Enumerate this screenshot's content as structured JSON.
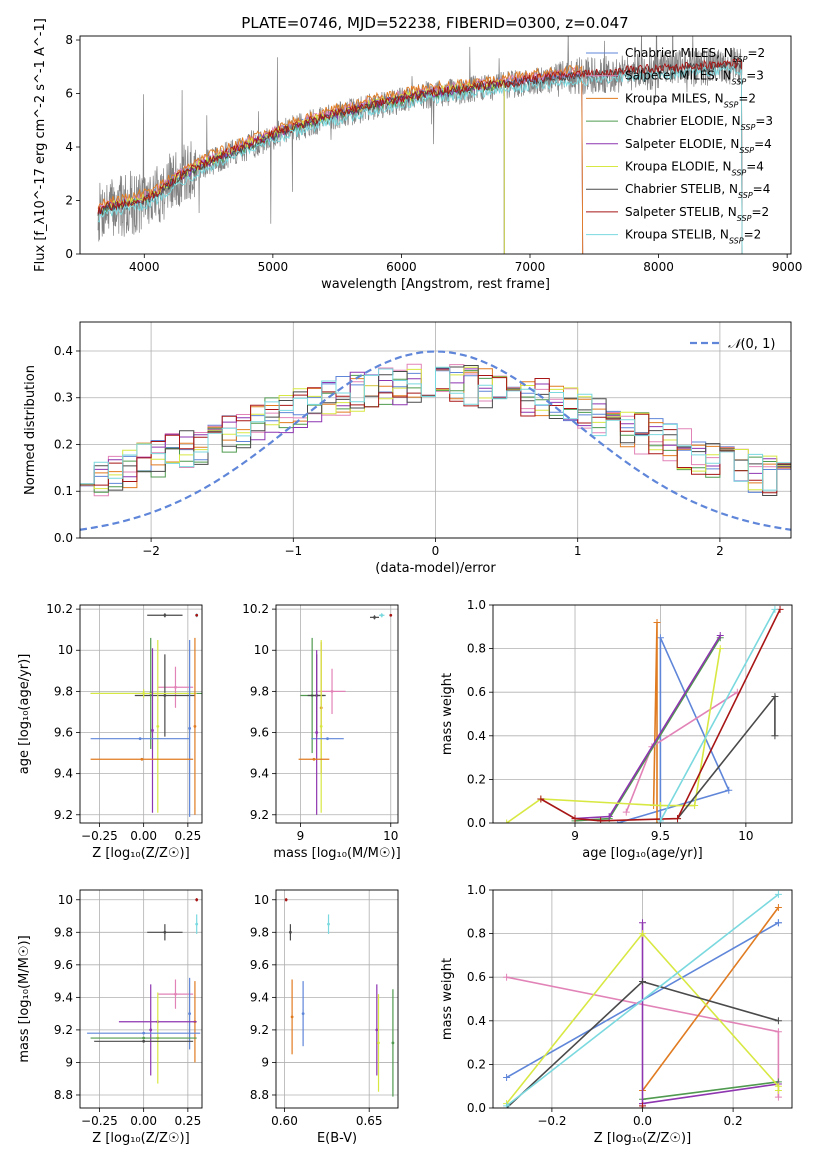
{
  "colors": {
    "cm": "#5f86d9",
    "sm": "#e283b7",
    "km": "#e07b21",
    "ce": "#4f9a4f",
    "se": "#8e35b0",
    "ke": "#d8e843",
    "cs": "#4a4a4a",
    "ss": "#a81616",
    "ks": "#7ad9df",
    "data": "#808080",
    "normal": "#5f86d9"
  },
  "chart_data": [
    {
      "id": "spectrum",
      "type": "line",
      "title": "PLATE=0746, MJD=52238, FIBERID=0300, z=0.047",
      "xlabel": "wavelength [Angstrom, rest frame]",
      "ylabel": "Flux [f_λ10^-17 erg cm^-2 s^-1 A^-1]",
      "xlim": [
        3500,
        9030
      ],
      "ylim": [
        0,
        8.15
      ],
      "xticks": [
        4000,
        5000,
        6000,
        7000,
        8000,
        9000
      ],
      "yticks": [
        0,
        2,
        4,
        6,
        8
      ],
      "data_range": [
        3640,
        8650
      ],
      "grid": false,
      "legend_position": "top-right",
      "continuum": {
        "x": [
          3640,
          3700,
          3800,
          3900,
          4000,
          4100,
          4200,
          4300,
          4400,
          4500,
          4600,
          4700,
          4800,
          4900,
          5000,
          5200,
          5400,
          5600,
          5800,
          6000,
          6200,
          6400,
          6600,
          6800,
          7000,
          7200,
          7400,
          7600,
          7800,
          8000,
          8200,
          8400,
          8650
        ],
        "y": [
          1.5,
          1.7,
          1.75,
          1.85,
          2.0,
          2.2,
          2.6,
          2.9,
          3.15,
          3.4,
          3.6,
          3.8,
          4.0,
          4.2,
          4.4,
          4.75,
          5.05,
          5.3,
          5.55,
          5.75,
          5.95,
          6.05,
          6.2,
          6.3,
          6.45,
          6.55,
          6.65,
          6.7,
          6.8,
          6.85,
          6.95,
          7.0,
          7.05
        ]
      },
      "series": [
        {
          "key": "cm",
          "label": "Chabrier MILES, ",
          "nssp": 2,
          "stop": 7410,
          "offset": 0.12
        },
        {
          "key": "sm",
          "label": "Salpeter MILES, ",
          "nssp": 3,
          "stop": 7410,
          "offset": 0.18
        },
        {
          "key": "km",
          "label": "Kroupa MILES, ",
          "nssp": 2,
          "stop": 7410,
          "offset": 0.28
        },
        {
          "key": "ce",
          "label": "Chabrier ELODIE, ",
          "nssp": 3,
          "stop": 6800,
          "offset": 0.0
        },
        {
          "key": "se",
          "label": "Salpeter ELODIE, ",
          "nssp": 4,
          "stop": 6800,
          "offset": 0.05
        },
        {
          "key": "ke",
          "label": "Kroupa ELODIE, ",
          "nssp": 4,
          "stop": 6800,
          "offset": 0.1
        },
        {
          "key": "cs",
          "label": "Chabrier STELIB, ",
          "nssp": 4,
          "stop": 8650,
          "offset": 0.02
        },
        {
          "key": "ss",
          "label": "Salpeter STELIB, ",
          "nssp": 2,
          "stop": 8650,
          "offset": 0.08
        },
        {
          "key": "ks",
          "label": "Kroupa STELIB, ",
          "nssp": 2,
          "stop": 8650,
          "offset": -0.18
        }
      ]
    },
    {
      "id": "residuals",
      "type": "histogram",
      "xlabel": "(data-model)/error",
      "ylabel": "Normed distribution",
      "xlim": [
        -2.5,
        2.5
      ],
      "ylim": [
        0,
        0.462
      ],
      "xticks": [
        -2,
        -1,
        0,
        1,
        2
      ],
      "yticks": [
        0.0,
        0.1,
        0.2,
        0.3,
        0.4
      ],
      "bin_width": 0.1,
      "grid": true,
      "normal_curve": {
        "label": "(0, 1)",
        "mean": 0,
        "sigma": 1
      }
    },
    {
      "id": "age-vs-Z",
      "type": "scatter",
      "xlabel": "Z [log₁₀(Z/Z☉)]",
      "ylabel": "age  [log₁₀(age/yr)]",
      "xlim": [
        -0.36,
        0.33
      ],
      "ylim": [
        9.16,
        10.22
      ],
      "xticks": [
        -0.25,
        0.0,
        0.25
      ],
      "xticklabels": [
        "−0.25",
        "0.00",
        "0.25"
      ],
      "yticks": [
        9.2,
        9.4,
        9.6,
        9.8,
        10.0,
        10.2
      ],
      "grid": true,
      "points": [
        {
          "key": "cs",
          "x": 0.12,
          "xerr": 0.1,
          "y": 10.17,
          "yerr": 0.01
        },
        {
          "key": "ks",
          "x": 0.3,
          "xerr": 0.0,
          "y": 10.17,
          "yerr": 0.01
        },
        {
          "key": "ss",
          "x": 0.3,
          "xerr": 0.0,
          "y": 10.17,
          "yerr": 0.005
        },
        {
          "key": "sm",
          "x": 0.18,
          "xerr": 0.1,
          "y": 9.82,
          "yerr": 0.1
        },
        {
          "key": "cs",
          "x": 0.12,
          "xerr": 0.17,
          "y": 9.78,
          "yerr": 0.2
        },
        {
          "key": "ce",
          "x": 0.04,
          "xerr": 0.34,
          "y": 9.79,
          "yerr": 0.27
        },
        {
          "key": "ke",
          "x": 0.0,
          "xerr": 0.3,
          "y": 9.79,
          "yerr": 0.02
        },
        {
          "key": "se",
          "x": 0.05,
          "xerr": 0.0,
          "y": 9.61,
          "yerr": 0.4
        },
        {
          "key": "ke",
          "x": 0.08,
          "xerr": 0.0,
          "y": 9.63,
          "yerr": 0.42
        },
        {
          "key": "cm",
          "x": -0.02,
          "xerr": 0.28,
          "y": 9.57,
          "yerr": 0.0
        },
        {
          "key": "cm",
          "x": 0.26,
          "xerr": 0.0,
          "y": 9.62,
          "yerr": 0.43
        },
        {
          "key": "km",
          "x": -0.01,
          "xerr": 0.29,
          "y": 9.47,
          "yerr": 0.0
        },
        {
          "key": "km",
          "x": 0.29,
          "xerr": 0.0,
          "y": 9.63,
          "yerr": 0.43
        }
      ]
    },
    {
      "id": "age-vs-mass",
      "type": "scatter",
      "xlabel": "mass [log₁₀(M/M☉)]",
      "ylabel": "",
      "xlim": [
        8.73,
        10.08
      ],
      "ylim": [
        9.16,
        10.22
      ],
      "xticks": [
        9,
        10
      ],
      "yticks": [
        9.2,
        9.4,
        9.6,
        9.8,
        10.0,
        10.2
      ],
      "grid": true,
      "points": [
        {
          "key": "cs",
          "x": 9.82,
          "xerr": 0.05,
          "y": 10.16,
          "yerr": 0.01
        },
        {
          "key": "ks",
          "x": 9.9,
          "xerr": 0.03,
          "y": 10.17,
          "yerr": 0.01
        },
        {
          "key": "ss",
          "x": 10.0,
          "xerr": 0.0,
          "y": 10.17,
          "yerr": 0.005
        },
        {
          "key": "sm",
          "x": 9.35,
          "xerr": 0.15,
          "y": 9.8,
          "yerr": 0.11
        },
        {
          "key": "ce",
          "x": 9.13,
          "xerr": 0.13,
          "y": 9.78,
          "yerr": 0.28
        },
        {
          "key": "cs",
          "x": 9.18,
          "xerr": 0.1,
          "y": 9.78,
          "yerr": 0.2
        },
        {
          "key": "km",
          "x": 9.23,
          "xerr": 0.0,
          "y": 9.72,
          "yerr": 0.32
        },
        {
          "key": "ke",
          "x": 9.23,
          "xerr": 0.0,
          "y": 9.63,
          "yerr": 0.42
        },
        {
          "key": "cm",
          "x": 9.3,
          "xerr": 0.18,
          "y": 9.57,
          "yerr": 0.0
        },
        {
          "key": "se",
          "x": 9.18,
          "xerr": 0.0,
          "y": 9.6,
          "yerr": 0.4
        },
        {
          "key": "km",
          "x": 9.15,
          "xerr": 0.17,
          "y": 9.47,
          "yerr": 0.0
        }
      ]
    },
    {
      "id": "weight-vs-age",
      "type": "line",
      "xlabel": "age  [log₁₀(age/yr)]",
      "ylabel": "mass weight",
      "xlim": [
        8.52,
        10.27
      ],
      "ylim": [
        0,
        1.0
      ],
      "xticks": [
        9.0,
        9.5,
        10.0
      ],
      "yticks": [
        0.0,
        0.2,
        0.4,
        0.6,
        0.8,
        1.0
      ],
      "grid": true,
      "series": [
        {
          "key": "cm",
          "x": [
            9.5,
            9.5,
            9.9,
            9.25
          ],
          "y": [
            0.0,
            0.85,
            0.15,
            0.0
          ]
        },
        {
          "key": "km",
          "x": [
            9.46,
            9.48,
            9.48
          ],
          "y": [
            0.08,
            0.92,
            0.0
          ]
        },
        {
          "key": "sm",
          "x": [
            9.3,
            9.45,
            9.95
          ],
          "y": [
            0.05,
            0.35,
            0.6
          ]
        },
        {
          "key": "ce",
          "x": [
            9.0,
            9.2,
            9.85
          ],
          "y": [
            0.01,
            0.02,
            0.85
          ]
        },
        {
          "key": "se",
          "x": [
            9.0,
            9.2,
            9.85
          ],
          "y": [
            0.02,
            0.03,
            0.86
          ]
        },
        {
          "key": "ke",
          "x": [
            8.6,
            8.8,
            9.5,
            9.7,
            9.85
          ],
          "y": [
            0.0,
            0.11,
            0.08,
            0.08,
            0.8
          ]
        },
        {
          "key": "cs",
          "x": [
            9.6,
            10.17,
            10.17
          ],
          "y": [
            0.02,
            0.58,
            0.4
          ]
        },
        {
          "key": "ss",
          "x": [
            8.8,
            9.0,
            9.15,
            9.6,
            10.2
          ],
          "y": [
            0.11,
            0.02,
            0.01,
            0.02,
            0.98
          ]
        },
        {
          "key": "ks",
          "x": [
            9.5,
            10.17
          ],
          "y": [
            0.01,
            0.98
          ]
        }
      ]
    },
    {
      "id": "mass-vs-Z",
      "type": "scatter",
      "xlabel": "Z [log₁₀(Z/Z☉)]",
      "ylabel": "mass [log₁₀(M/M☉)]",
      "xlim": [
        -0.36,
        0.33
      ],
      "ylim": [
        8.72,
        10.06
      ],
      "xticks": [
        -0.25,
        0.0,
        0.25
      ],
      "xticklabels": [
        "−0.25",
        "0.00",
        "0.25"
      ],
      "yticks": [
        8.8,
        9.0,
        9.2,
        9.4,
        9.6,
        9.8,
        10.0
      ],
      "grid": true,
      "points": [
        {
          "key": "ss",
          "x": 0.3,
          "xerr": 0.0,
          "y": 10.0,
          "yerr": 0.01
        },
        {
          "key": "cs",
          "x": 0.12,
          "xerr": 0.1,
          "y": 9.8,
          "yerr": 0.05
        },
        {
          "key": "ks",
          "x": 0.3,
          "xerr": 0.0,
          "y": 9.85,
          "yerr": 0.06
        },
        {
          "key": "sm",
          "x": 0.18,
          "xerr": 0.1,
          "y": 9.42,
          "yerr": 0.09
        },
        {
          "key": "cm",
          "x": 0.26,
          "xerr": 0.0,
          "y": 9.3,
          "yerr": 0.22
        },
        {
          "key": "km",
          "x": 0.29,
          "xerr": 0.0,
          "y": 9.25,
          "yerr": 0.25
        },
        {
          "key": "se",
          "x": 0.04,
          "xerr": 0.0,
          "y": 9.2,
          "yerr": 0.28
        },
        {
          "key": "se",
          "x": 0.08,
          "xerr": 0.22,
          "y": 9.25,
          "yerr": 0.0
        },
        {
          "key": "ke",
          "x": 0.08,
          "xerr": 0.0,
          "y": 9.15,
          "yerr": 0.28
        },
        {
          "key": "cm",
          "x": 0.0,
          "xerr": 0.32,
          "y": 9.18,
          "yerr": 0.0
        },
        {
          "key": "ce",
          "x": 0.0,
          "xerr": 0.3,
          "y": 9.15,
          "yerr": 0.0
        },
        {
          "key": "cs",
          "x": 0.0,
          "xerr": 0.28,
          "y": 9.13,
          "yerr": 0.0
        }
      ]
    },
    {
      "id": "mass-vs-ebv",
      "type": "scatter",
      "xlabel": "E(B-V)",
      "ylabel": "",
      "xlim": [
        0.595,
        0.667
      ],
      "ylim": [
        8.72,
        10.06
      ],
      "xticks": [
        0.6,
        0.65
      ],
      "xticklabels": [
        "0.60",
        "0.65"
      ],
      "yticks": [
        8.8,
        9.0,
        9.2,
        9.4,
        9.6,
        9.8,
        10.0
      ],
      "grid": true,
      "points": [
        {
          "key": "ss",
          "x": 0.601,
          "xerr": 0.0,
          "y": 10.0,
          "yerr": 0.01
        },
        {
          "key": "cs",
          "x": 0.6035,
          "xerr": 0.0,
          "y": 9.8,
          "yerr": 0.05
        },
        {
          "key": "ks",
          "x": 0.626,
          "xerr": 0.0,
          "y": 9.85,
          "yerr": 0.06
        },
        {
          "key": "km",
          "x": 0.6045,
          "xerr": 0.0,
          "y": 9.28,
          "yerr": 0.23
        },
        {
          "key": "cm",
          "x": 0.611,
          "xerr": 0.0,
          "y": 9.3,
          "yerr": 0.2
        },
        {
          "key": "se",
          "x": 0.6545,
          "xerr": 0.0,
          "y": 9.2,
          "yerr": 0.28
        },
        {
          "key": "ke",
          "x": 0.6555,
          "xerr": 0.0,
          "y": 9.12,
          "yerr": 0.3
        },
        {
          "key": "ce",
          "x": 0.664,
          "xerr": 0.0,
          "y": 9.12,
          "yerr": 0.33
        }
      ]
    },
    {
      "id": "weight-vs-Z",
      "type": "line",
      "xlabel": "Z [log₁₀(Z/Z☉)]",
      "ylabel": "mass weight",
      "xlim": [
        -0.33,
        0.33
      ],
      "ylim": [
        0,
        1.0
      ],
      "xticks": [
        -0.2,
        0.0,
        0.2
      ],
      "xticklabels": [
        "−0.2",
        "0.0",
        "0.2"
      ],
      "yticks": [
        0.0,
        0.2,
        0.4,
        0.6,
        0.8,
        1.0
      ],
      "grid": true,
      "series": [
        {
          "key": "cm",
          "x": [
            -0.3,
            0.3,
            0.3
          ],
          "y": [
            0.14,
            0.85,
            0.85
          ]
        },
        {
          "key": "sm",
          "x": [
            -0.3,
            0.3,
            0.3
          ],
          "y": [
            0.6,
            0.35,
            0.05
          ]
        },
        {
          "key": "km",
          "x": [
            0.0,
            0.3
          ],
          "y": [
            0.08,
            0.92
          ]
        },
        {
          "key": "ce",
          "x": [
            0.0,
            0.3
          ],
          "y": [
            0.04,
            0.12
          ]
        },
        {
          "key": "se",
          "x": [
            0.0,
            0.0,
            0.0,
            0.3
          ],
          "y": [
            0.02,
            0.85,
            0.02,
            0.11
          ]
        },
        {
          "key": "ke",
          "x": [
            -0.3,
            0.0,
            0.3,
            0.3
          ],
          "y": [
            0.02,
            0.8,
            0.1,
            0.08
          ]
        },
        {
          "key": "cs",
          "x": [
            -0.3,
            0.0,
            0.3
          ],
          "y": [
            0.0,
            0.58,
            0.4
          ]
        },
        {
          "key": "ss",
          "x": [
            0.0,
            0.0
          ],
          "y": [
            0.01,
            0.0
          ]
        },
        {
          "key": "ks",
          "x": [
            -0.3,
            0.3
          ],
          "y": [
            0.01,
            0.98
          ]
        }
      ]
    }
  ]
}
